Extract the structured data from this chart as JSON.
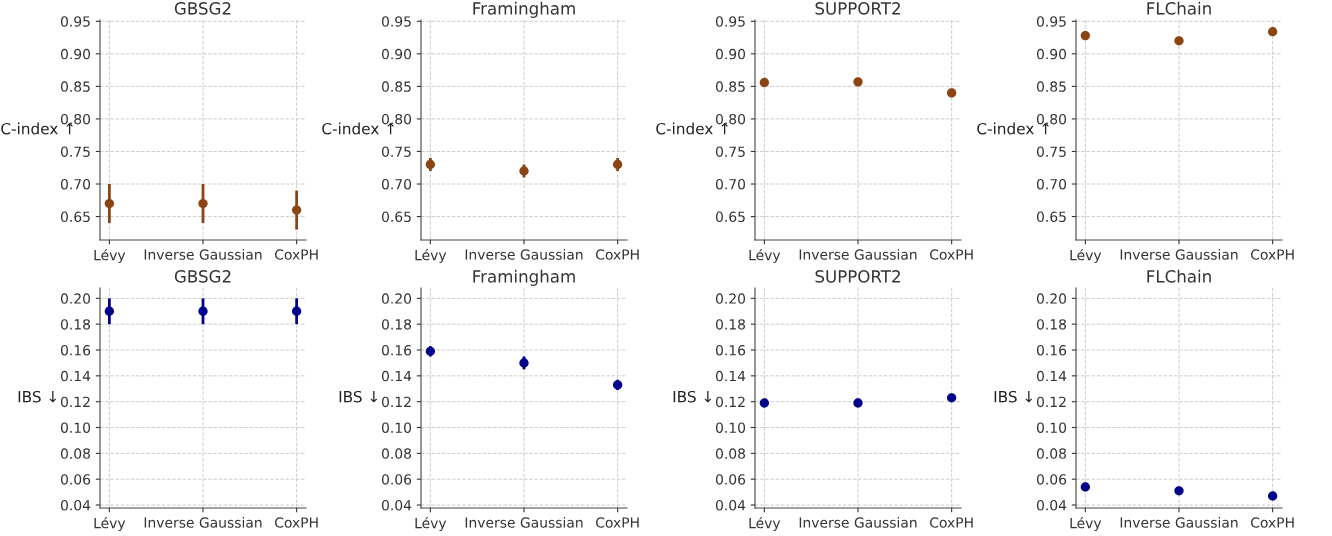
{
  "chart_data": [
    {
      "type": "scatter",
      "title": "GBSG2",
      "ylabel": "C-index ↑",
      "categories": [
        "Lévy",
        "Inverse Gaussian",
        "CoxPH"
      ],
      "values": [
        0.67,
        0.67,
        0.66
      ],
      "errors": [
        0.03,
        0.03,
        0.03
      ],
      "color": "#8b4513",
      "marker": "circle",
      "grid": true,
      "ylim": [
        0.614,
        0.952
      ],
      "yticks": [
        0.65,
        {
          "value": 0.7,
          "label": "0.70"
        },
        0.75,
        {
          "value": 0.8,
          "label": "0.80"
        },
        0.85,
        {
          "value": 0.9,
          "label": "0.90"
        },
        0.95
      ]
    },
    {
      "type": "scatter",
      "title": "Framingham",
      "ylabel": "C-index ↑",
      "categories": [
        "Lévy",
        "Inverse Gaussian",
        "CoxPH"
      ],
      "values": [
        0.73,
        0.72,
        0.73
      ],
      "errors": [
        0.01,
        0.01,
        0.01
      ],
      "color": "#8b4513",
      "marker": "circle",
      "grid": true,
      "ylim": [
        0.614,
        0.952
      ],
      "yticks": [
        0.65,
        {
          "value": 0.7,
          "label": "0.70"
        },
        0.75,
        {
          "value": 0.8,
          "label": "0.80"
        },
        0.85,
        {
          "value": 0.9,
          "label": "0.90"
        },
        0.95
      ]
    },
    {
      "type": "scatter",
      "title": "SUPPORT2",
      "ylabel": "C-index ↑",
      "categories": [
        "Lévy",
        "Inverse Gaussian",
        "CoxPH"
      ],
      "values": [
        0.856,
        0.857,
        0.84
      ],
      "color": "#8b4513",
      "marker": "circle",
      "grid": true,
      "ylim": [
        0.614,
        0.952
      ],
      "yticks": [
        0.65,
        {
          "value": 0.7,
          "label": "0.70"
        },
        0.75,
        {
          "value": 0.8,
          "label": "0.80"
        },
        0.85,
        {
          "value": 0.9,
          "label": "0.90"
        },
        0.95
      ]
    },
    {
      "type": "scatter",
      "title": "FLChain",
      "ylabel": "C-index ↑",
      "categories": [
        "Lévy",
        "Inverse Gaussian",
        "CoxPH"
      ],
      "values": [
        0.928,
        0.92,
        0.934
      ],
      "errors": [
        null,
        0.004,
        null
      ],
      "color": "#8b4513",
      "marker": "circle",
      "grid": true,
      "ylim": [
        0.614,
        0.952
      ],
      "yticks": [
        0.65,
        {
          "value": 0.7,
          "label": "0.70"
        },
        0.75,
        {
          "value": 0.8,
          "label": "0.80"
        },
        0.85,
        {
          "value": 0.9,
          "label": "0.90"
        },
        0.95
      ]
    },
    {
      "type": "scatter",
      "title": "GBSG2",
      "ylabel": "IBS ↓",
      "categories": [
        "Lévy",
        "Inverse Gaussian",
        "CoxPH"
      ],
      "values": [
        0.19,
        0.19,
        0.19
      ],
      "errors": [
        0.01,
        0.01,
        0.01
      ],
      "color": "#00008b",
      "marker": "circle",
      "grid": true,
      "ylim": [
        0.0377,
        0.208
      ],
      "yticks": [
        0.04,
        0.06,
        0.08,
        {
          "value": 0.1,
          "label": "0.10"
        },
        0.12,
        0.14,
        0.16,
        0.18,
        {
          "value": 0.2,
          "label": "0.20"
        }
      ]
    },
    {
      "type": "scatter",
      "title": "Framingham",
      "ylabel": "IBS ↓",
      "categories": [
        "Lévy",
        "Inverse Gaussian",
        "CoxPH"
      ],
      "values": [
        0.159,
        0.15,
        0.133
      ],
      "errors": [
        0.004,
        0.005,
        0.004
      ],
      "color": "#00008b",
      "marker": "circle",
      "grid": true,
      "ylim": [
        0.0377,
        0.208
      ],
      "yticks": [
        0.04,
        0.06,
        0.08,
        {
          "value": 0.1,
          "label": "0.10"
        },
        0.12,
        0.14,
        0.16,
        0.18,
        {
          "value": 0.2,
          "label": "0.20"
        }
      ]
    },
    {
      "type": "scatter",
      "title": "SUPPORT2",
      "ylabel": "IBS ↓",
      "categories": [
        "Lévy",
        "Inverse Gaussian",
        "CoxPH"
      ],
      "values": [
        0.119,
        0.119,
        0.123
      ],
      "errors": [
        null,
        0.002,
        0.002
      ],
      "color": "#00008b",
      "marker": "circle",
      "grid": true,
      "ylim": [
        0.0377,
        0.208
      ],
      "yticks": [
        0.04,
        0.06,
        0.08,
        {
          "value": 0.1,
          "label": "0.10"
        },
        0.12,
        0.14,
        0.16,
        0.18,
        {
          "value": 0.2,
          "label": "0.20"
        }
      ]
    },
    {
      "type": "scatter",
      "title": "FLChain",
      "ylabel": "IBS ↓",
      "categories": [
        "Lévy",
        "Inverse Gaussian",
        "CoxPH"
      ],
      "values": [
        0.054,
        0.051,
        0.047
      ],
      "color": "#00008b",
      "marker": "circle",
      "grid": true,
      "ylim": [
        0.0377,
        0.208
      ],
      "yticks": [
        0.04,
        0.06,
        0.08,
        {
          "value": 0.1,
          "label": "0.10"
        },
        0.12,
        0.14,
        0.16,
        0.18,
        {
          "value": 0.2,
          "label": "0.20"
        }
      ]
    }
  ]
}
